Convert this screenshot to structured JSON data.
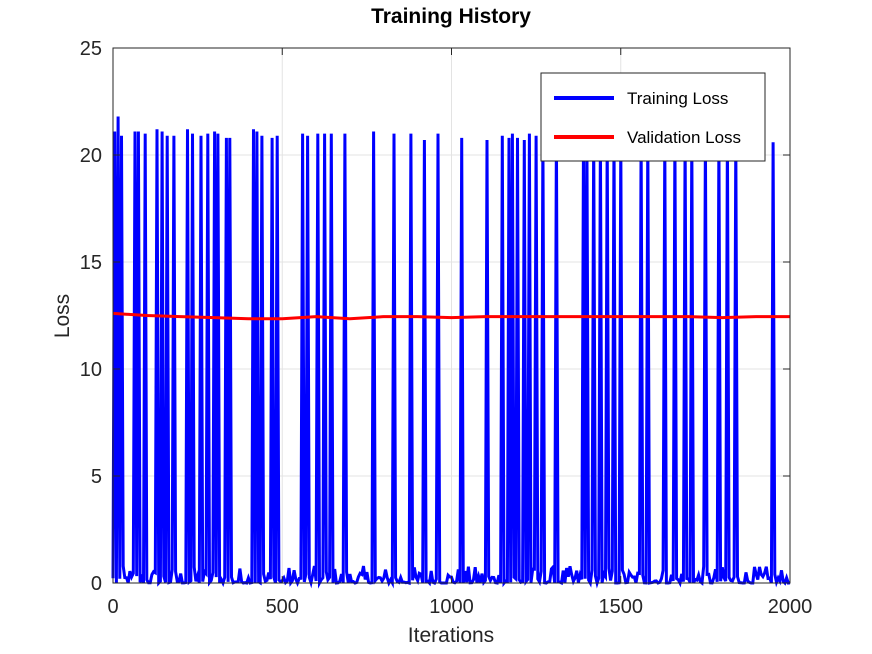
{
  "chart_data": {
    "type": "line",
    "title": "Training History",
    "xlabel": "Iterations",
    "ylabel": "Loss",
    "xlim": [
      0,
      2000
    ],
    "ylim": [
      0,
      25
    ],
    "x_ticks": [
      0,
      500,
      1000,
      1500,
      2000
    ],
    "y_ticks": [
      0,
      5,
      10,
      15,
      20,
      25
    ],
    "grid": true,
    "legend_position": "top-right",
    "series": [
      {
        "name": "Training Loss",
        "color": "#0000ff",
        "baseline_range": [
          0.0,
          0.8
        ],
        "spikes": [
          [
            5,
            21.1
          ],
          [
            15,
            21.8
          ],
          [
            25,
            20.9
          ],
          [
            65,
            21.1
          ],
          [
            75,
            21.1
          ],
          [
            95,
            21.0
          ],
          [
            130,
            21.2
          ],
          [
            145,
            21.1
          ],
          [
            160,
            20.9
          ],
          [
            180,
            20.9
          ],
          [
            220,
            21.2
          ],
          [
            235,
            21.0
          ],
          [
            260,
            20.9
          ],
          [
            280,
            21.0
          ],
          [
            300,
            21.1
          ],
          [
            310,
            21.0
          ],
          [
            335,
            20.8
          ],
          [
            345,
            20.8
          ],
          [
            415,
            21.2
          ],
          [
            425,
            21.1
          ],
          [
            440,
            20.9
          ],
          [
            470,
            20.8
          ],
          [
            485,
            20.9
          ],
          [
            560,
            21.0
          ],
          [
            575,
            20.9
          ],
          [
            605,
            21.0
          ],
          [
            625,
            21.0
          ],
          [
            645,
            21.0
          ],
          [
            685,
            21.0
          ],
          [
            770,
            21.1
          ],
          [
            830,
            21.0
          ],
          [
            880,
            21.0
          ],
          [
            920,
            20.7
          ],
          [
            960,
            21.0
          ],
          [
            1030,
            20.8
          ],
          [
            1105,
            20.7
          ],
          [
            1150,
            20.9
          ],
          [
            1170,
            20.8
          ],
          [
            1180,
            21.0
          ],
          [
            1195,
            20.8
          ],
          [
            1215,
            20.7
          ],
          [
            1230,
            21.0
          ],
          [
            1250,
            20.9
          ],
          [
            1270,
            20.9
          ],
          [
            1310,
            21.1
          ],
          [
            1390,
            21.0
          ],
          [
            1400,
            20.9
          ],
          [
            1420,
            21.0
          ],
          [
            1440,
            20.9
          ],
          [
            1460,
            20.9
          ],
          [
            1480,
            21.0
          ],
          [
            1500,
            20.7
          ],
          [
            1560,
            20.9
          ],
          [
            1580,
            21.0
          ],
          [
            1630,
            20.8
          ],
          [
            1660,
            21.0
          ],
          [
            1690,
            21.0
          ],
          [
            1710,
            20.9
          ],
          [
            1750,
            21.0
          ],
          [
            1790,
            20.9
          ],
          [
            1815,
            21.0
          ],
          [
            1840,
            20.8
          ],
          [
            1950,
            20.6
          ]
        ]
      },
      {
        "name": "Validation Loss",
        "color": "#ff0000",
        "x": [
          0,
          100,
          200,
          300,
          400,
          500,
          600,
          700,
          800,
          900,
          1000,
          1100,
          1200,
          1300,
          1400,
          1500,
          1600,
          1700,
          1800,
          1900,
          2000
        ],
        "y": [
          12.6,
          12.5,
          12.45,
          12.4,
          12.35,
          12.35,
          12.45,
          12.35,
          12.45,
          12.45,
          12.4,
          12.45,
          12.45,
          12.45,
          12.45,
          12.45,
          12.45,
          12.45,
          12.4,
          12.45,
          12.45
        ]
      }
    ]
  }
}
